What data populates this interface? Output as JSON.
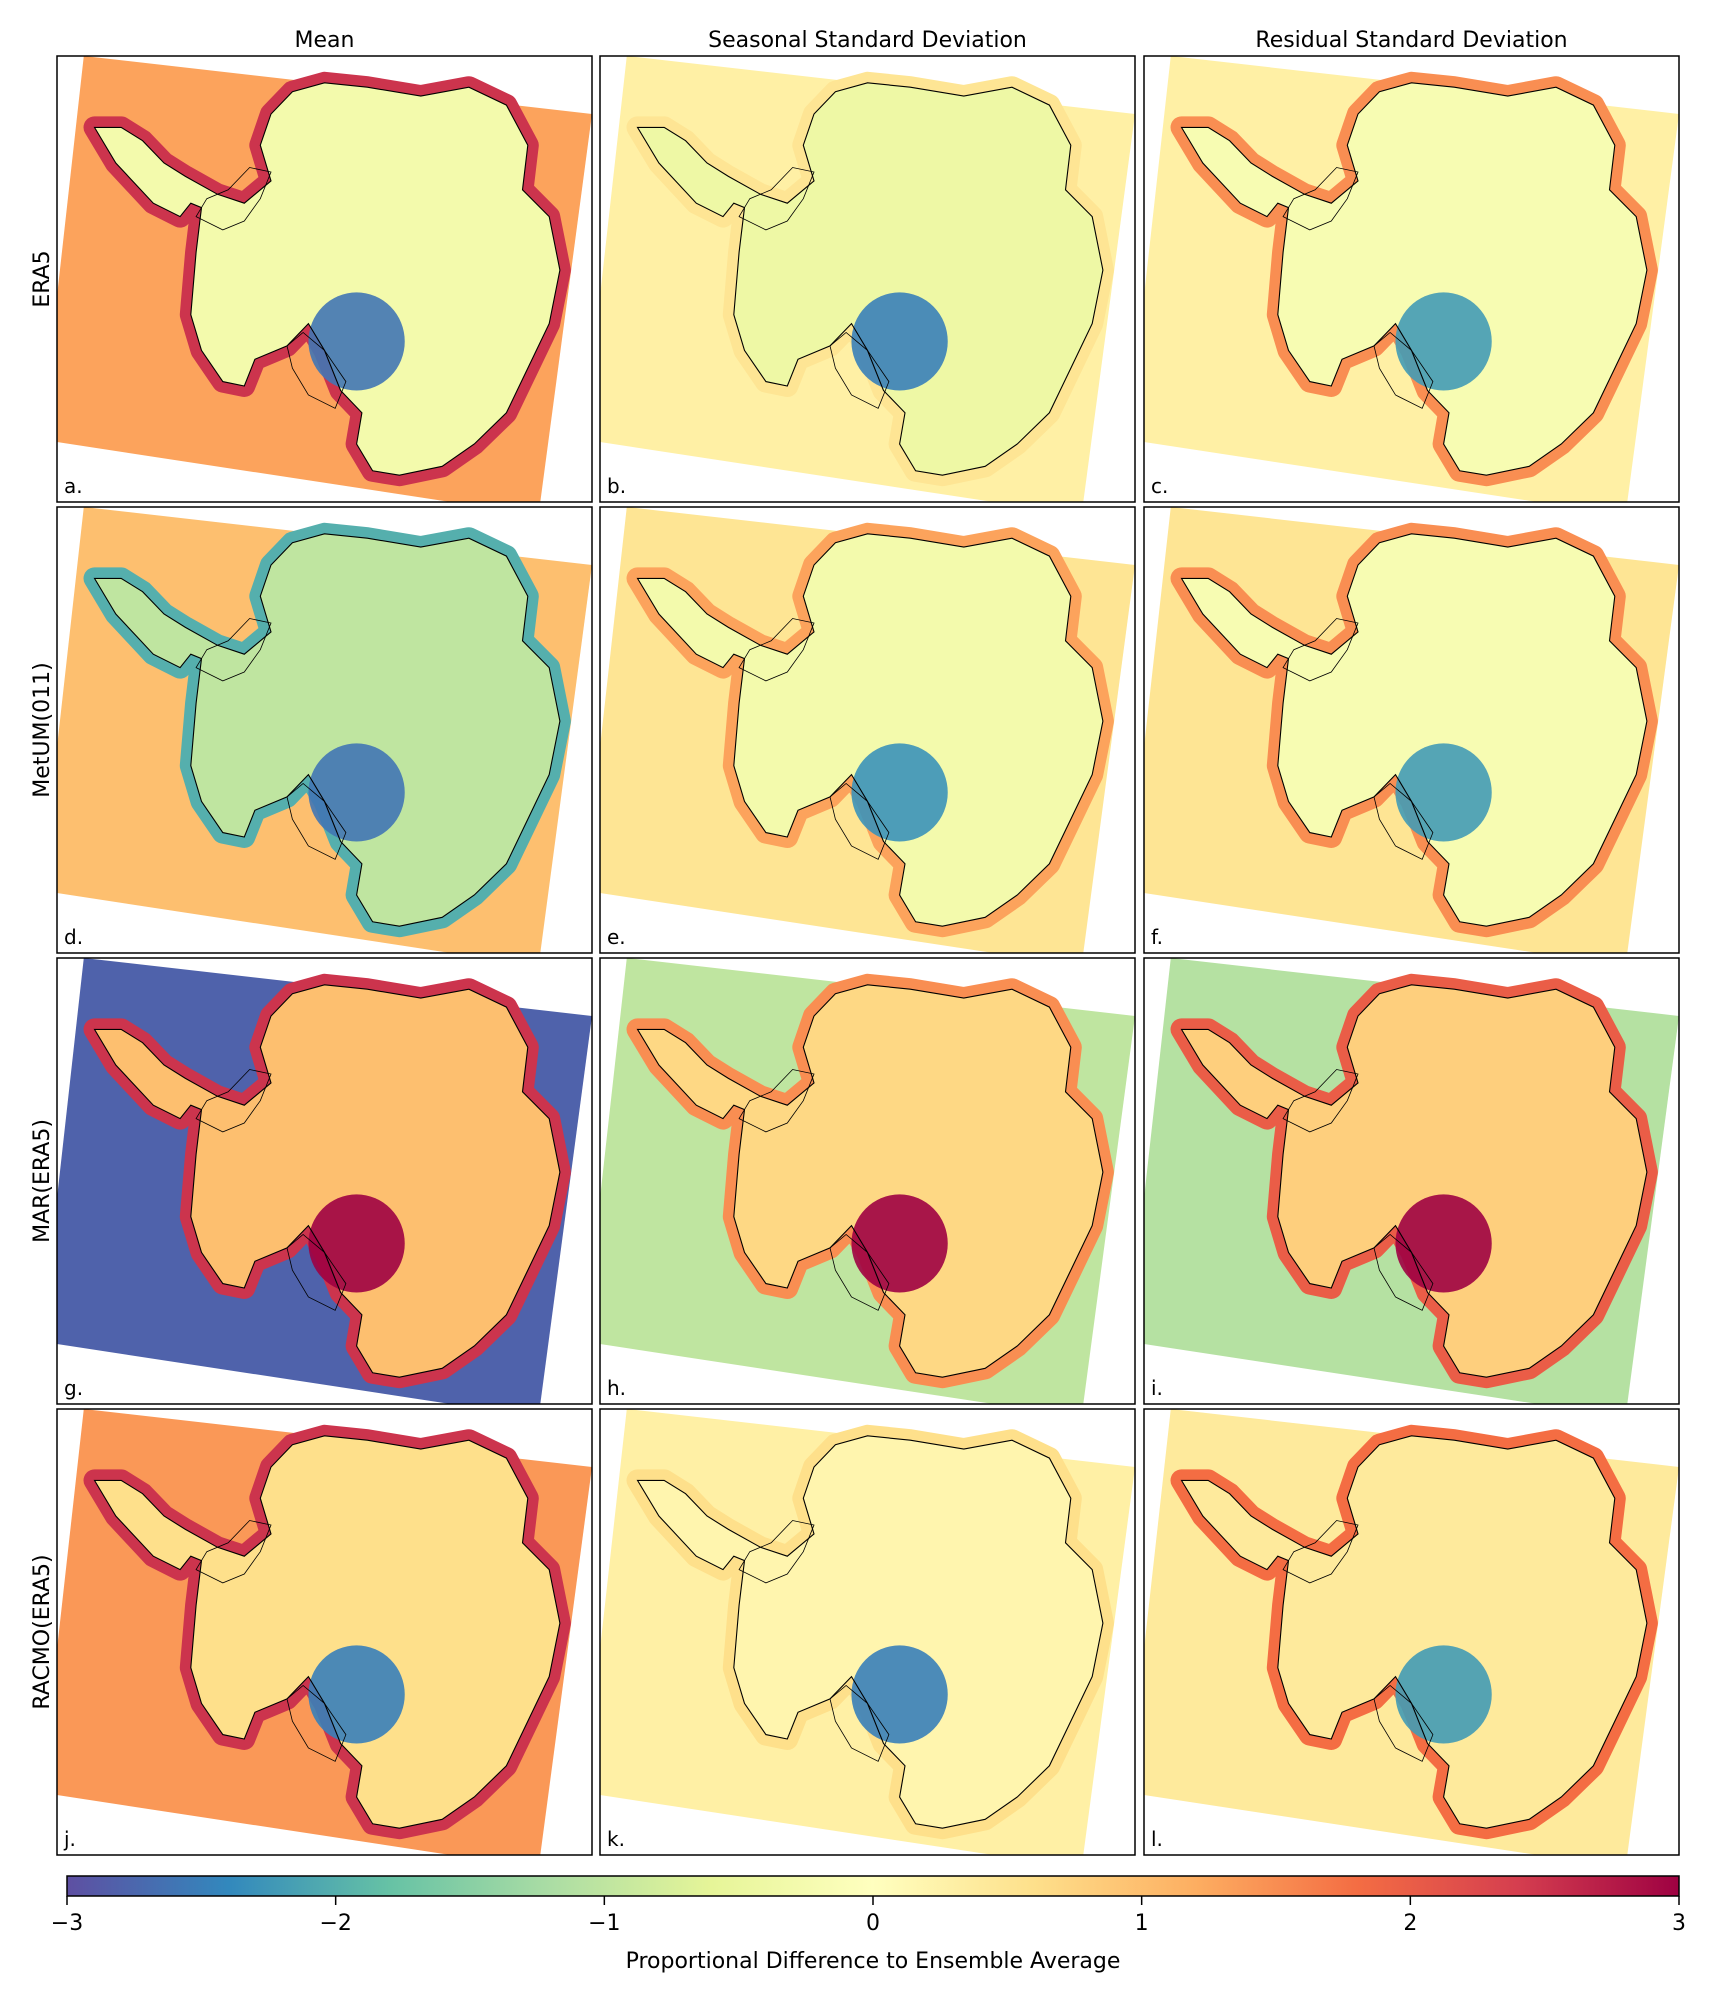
{
  "chart_data": {
    "type": "heatmap",
    "layout": "4 rows x 3 columns grid of Antarctic maps",
    "columns": [
      "Mean",
      "Seasonal Standard Deviation",
      "Residual Standard Deviation"
    ],
    "rows": [
      "ERA5",
      "MetUM(011)",
      "MAR(ERA5)",
      "RACMO(ERA5)"
    ],
    "panel_labels": [
      "a.",
      "b.",
      "c.",
      "d.",
      "e.",
      "f.",
      "g.",
      "h.",
      "i.",
      "j.",
      "k.",
      "l."
    ],
    "panels": [
      {
        "label": "a.",
        "row": "ERA5",
        "column": "Mean",
        "ocean_value": 1.3,
        "interior_value": -0.3,
        "coast_value": 2.5,
        "anomaly_value": -2.6
      },
      {
        "label": "b.",
        "row": "ERA5",
        "column": "Seasonal Standard Deviation",
        "ocean_value": 0.3,
        "interior_value": -0.4,
        "coast_value": 0.5,
        "anomaly_value": -2.5
      },
      {
        "label": "c.",
        "row": "ERA5",
        "column": "Residual Standard Deviation",
        "ocean_value": 0.3,
        "interior_value": -0.2,
        "coast_value": 1.5,
        "anomaly_value": -2.2
      },
      {
        "label": "d.",
        "row": "MetUM(011)",
        "column": "Mean",
        "ocean_value": 1.0,
        "interior_value": -1.0,
        "coast_value": -2.0,
        "anomaly_value": -2.6
      },
      {
        "label": "e.",
        "row": "MetUM(011)",
        "column": "Seasonal Standard Deviation",
        "ocean_value": 0.5,
        "interior_value": -0.3,
        "coast_value": 1.3,
        "anomaly_value": -2.3
      },
      {
        "label": "f.",
        "row": "MetUM(011)",
        "column": "Residual Standard Deviation",
        "ocean_value": 0.5,
        "interior_value": -0.2,
        "coast_value": 1.5,
        "anomaly_value": -2.2
      },
      {
        "label": "g.",
        "row": "MAR(ERA5)",
        "column": "Mean",
        "ocean_value": -2.8,
        "interior_value": 1.0,
        "coast_value": 2.5,
        "anomaly_value": 3.0
      },
      {
        "label": "h.",
        "row": "MAR(ERA5)",
        "column": "Seasonal Standard Deviation",
        "ocean_value": -1.0,
        "interior_value": 0.7,
        "coast_value": 1.5,
        "anomaly_value": 3.0
      },
      {
        "label": "i.",
        "row": "MAR(ERA5)",
        "column": "Residual Standard Deviation",
        "ocean_value": -1.1,
        "interior_value": 0.8,
        "coast_value": 2.0,
        "anomaly_value": 3.0
      },
      {
        "label": "j.",
        "row": "RACMO(ERA5)",
        "column": "Mean",
        "ocean_value": 1.4,
        "interior_value": 0.6,
        "coast_value": 2.5,
        "anomaly_value": -2.5
      },
      {
        "label": "k.",
        "row": "RACMO(ERA5)",
        "column": "Seasonal Standard Deviation",
        "ocean_value": 0.3,
        "interior_value": 0.2,
        "coast_value": 0.6,
        "anomaly_value": -2.5
      },
      {
        "label": "l.",
        "row": "RACMO(ERA5)",
        "column": "Residual Standard Deviation",
        "ocean_value": 0.4,
        "interior_value": 0.4,
        "coast_value": 1.8,
        "anomaly_value": -2.2
      }
    ],
    "colorbar": {
      "label": "Proportional Difference to Ensemble Average",
      "range": [
        -3,
        3
      ],
      "ticks": [
        -3,
        -2,
        -1,
        0,
        1,
        2,
        3
      ],
      "tick_labels": [
        "−3",
        "−2",
        "−1",
        "0",
        "1",
        "2",
        "3"
      ],
      "colormap": "Spectral_r",
      "colors": [
        "#5e4fa2",
        "#3288bd",
        "#66c2a5",
        "#abdda4",
        "#e6f598",
        "#ffffbf",
        "#fee08b",
        "#fdae61",
        "#f46d43",
        "#d53e4f",
        "#9e0142"
      ]
    }
  }
}
